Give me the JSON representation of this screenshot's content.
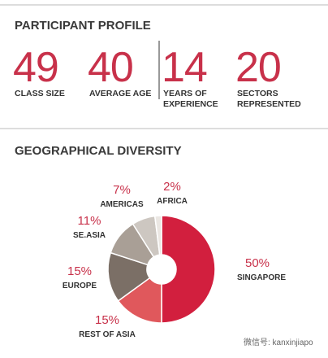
{
  "header": {
    "title": "PARTICIPANT PROFILE"
  },
  "stats": [
    {
      "value": 49,
      "label": [
        "CLASS SIZE"
      ]
    },
    {
      "value": 40,
      "label": [
        "AVERAGE AGE"
      ]
    },
    {
      "value": 14,
      "label": [
        "YEARS OF",
        "EXPERIENCE"
      ]
    },
    {
      "value": 20,
      "label": [
        "SECTORS",
        "REPRESENTED"
      ]
    }
  ],
  "chart_data": {
    "type": "pie",
    "title": "GEOGRAPHICAL DIVERSITY",
    "categories": [
      "SINGAPORE",
      "REST OF ASIA",
      "EUROPE",
      "SE.ASIA",
      "AMERICAS",
      "AFRICA"
    ],
    "values": [
      50,
      15,
      15,
      11,
      7,
      2
    ],
    "value_labels": [
      "50%",
      "15%",
      "15%",
      "11%",
      "7%",
      "2%"
    ],
    "colors": [
      "#d21f3e",
      "#e0585c",
      "#7b6f66",
      "#a99f96",
      "#cdc7c1",
      "#ebe7e3"
    ]
  },
  "watermark": "微信号: kanxinjiapo"
}
